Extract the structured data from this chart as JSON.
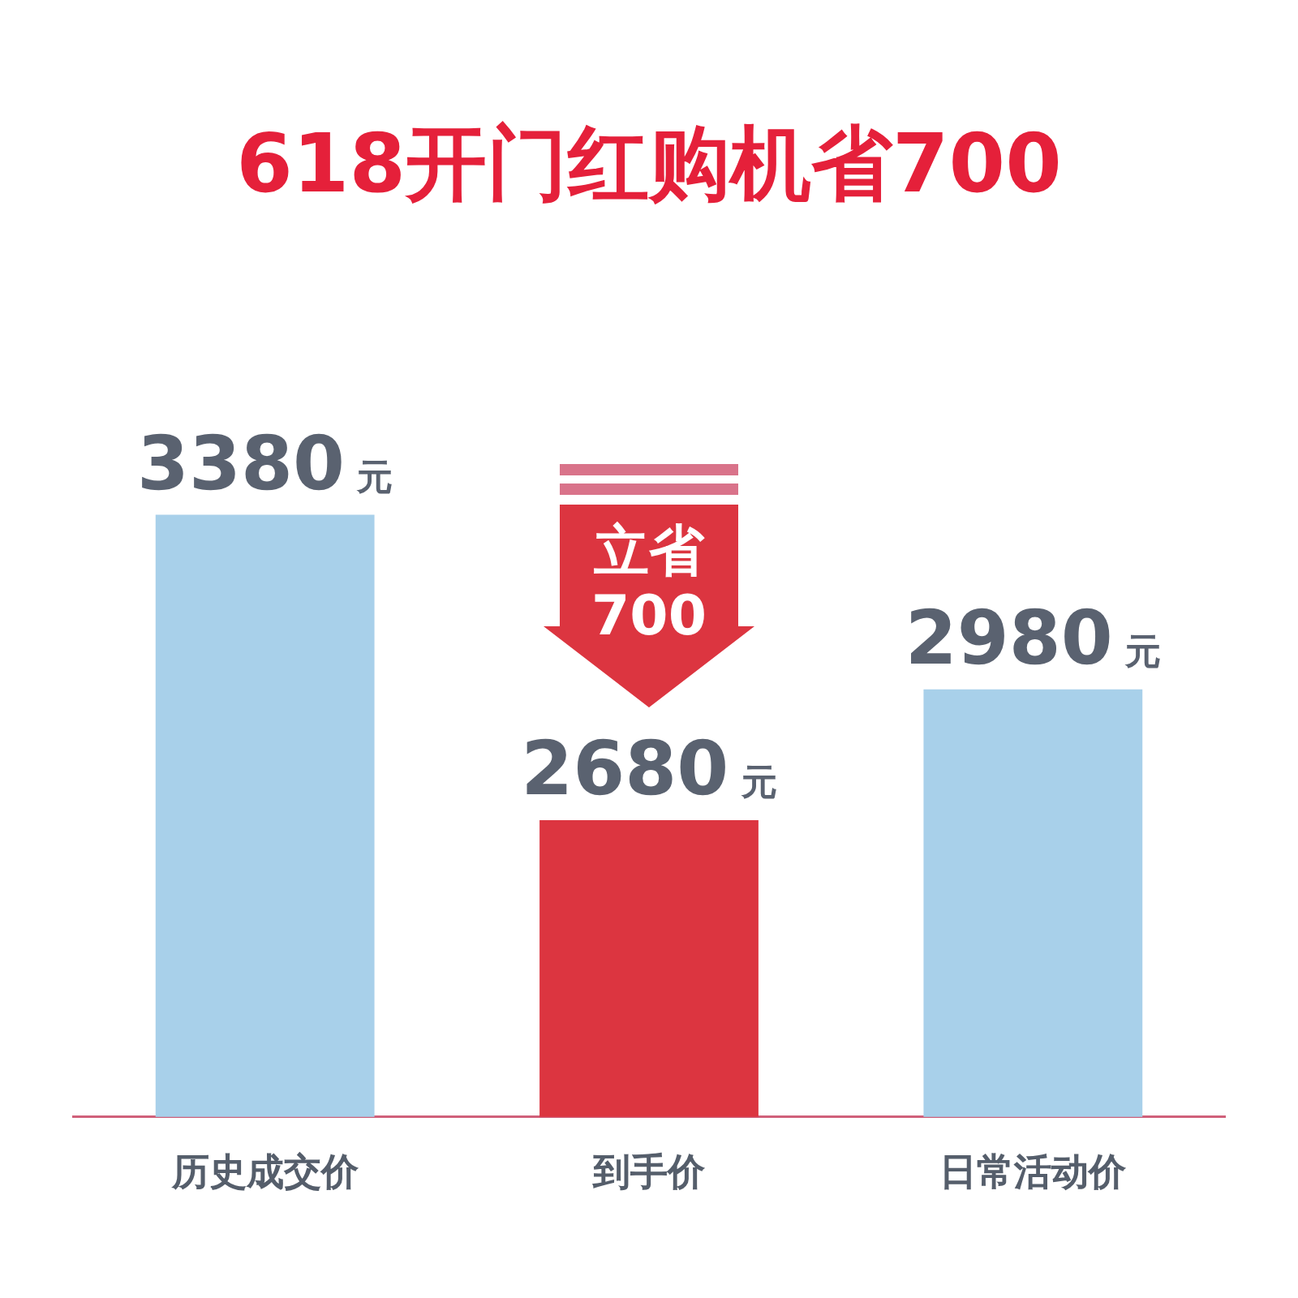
{
  "chart_data": {
    "type": "bar",
    "title": "618开门红购机省700",
    "categories": [
      "历史成交价",
      "到手价",
      "日常活动价"
    ],
    "values": [
      3380,
      2680,
      2980
    ],
    "colors": [
      "#a8d0ea",
      "#dc3540",
      "#a8d0ea"
    ],
    "value_labels": [
      "3380 元",
      "2680 元",
      "2980 元"
    ],
    "ylim": [
      2000,
      3500
    ],
    "tick_labels": "x",
    "grid": false,
    "legend": false,
    "annotations": [
      "立省 700"
    ]
  }
}
